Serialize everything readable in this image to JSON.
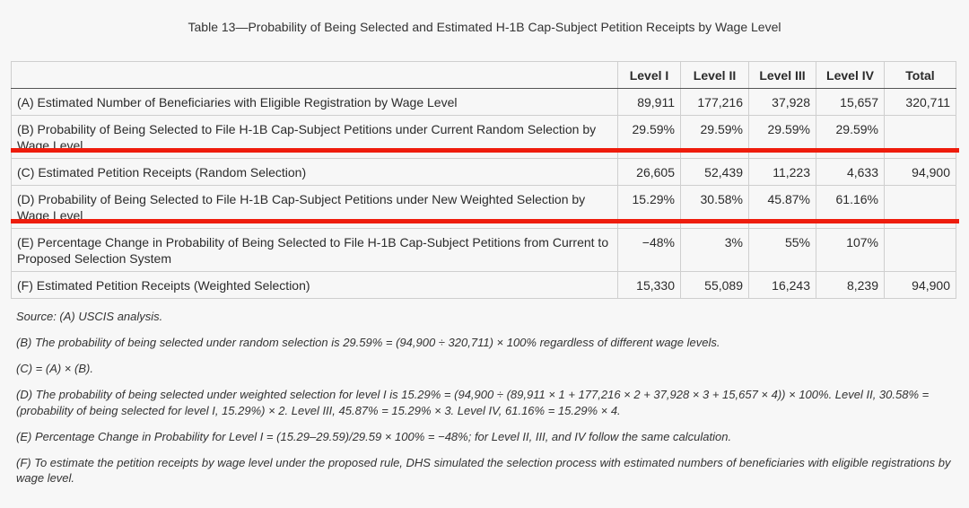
{
  "caption": "Table 13—Probability of Being Selected and Estimated H-1B Cap-Subject Petition Receipts by Wage Level",
  "columns": [
    "",
    "Level I",
    "Level II",
    "Level III",
    "Level IV",
    "Total"
  ],
  "rows": [
    {
      "label": "(A) Estimated Number of Beneficiaries with Eligible Registration by Wage Level",
      "values": [
        "89,911",
        "177,216",
        "37,928",
        "15,657",
        "320,711"
      ]
    },
    {
      "label": "(B) Probability of Being Selected to File H-1B Cap-Subject Petitions under Current Random Selection by Wage Level",
      "values": [
        "29.59%",
        "29.59%",
        "29.59%",
        "29.59%",
        ""
      ]
    },
    {
      "label": "(C) Estimated Petition Receipts (Random Selection)",
      "values": [
        "26,605",
        "52,439",
        "11,223",
        "4,633",
        "94,900"
      ]
    },
    {
      "label": "(D) Probability of Being Selected to File H-1B Cap-Subject Petitions under New Weighted Selection by Wage Level",
      "values": [
        "15.29%",
        "30.58%",
        "45.87%",
        "61.16%",
        ""
      ]
    },
    {
      "label": "(E) Percentage Change in Probability of Being Selected to File H-1B Cap-Subject Petitions from Current to Proposed Selection System",
      "values": [
        "−48%",
        "3%",
        "55%",
        "107%",
        ""
      ]
    },
    {
      "label": "(F) Estimated Petition Receipts (Weighted Selection)",
      "values": [
        "15,330",
        "55,089",
        "16,243",
        "8,239",
        "94,900"
      ]
    }
  ],
  "notes": [
    "Source: (A) USCIS analysis.",
    "(B) The probability of being selected under random selection is 29.59% = (94,900 ÷ 320,711) × 100% regardless of different wage levels.",
    "(C) = (A) × (B).",
    "(D) The probability of being selected under weighted selection for level I is 15.29% = (94,900 ÷ (89,911 × 1 + 177,216 × 2 + 37,928 × 3 + 15,657 × 4)) × 100%. Level II, 30.58% = (probability of being selected for level I, 15.29%) × 2. Level III, 45.87% = 15.29% × 3. Level IV, 61.16% = 15.29% × 4.",
    "(E) Percentage Change in Probability for Level I = (15.29–29.59)/29.59 × 100% = −48%; for Level II, III, and IV follow the same calculation.",
    "(F) To estimate the petition receipts by wage level under the proposed rule, DHS simulated the selection process with estimated numbers of beneficiaries with eligible registrations by wage level."
  ],
  "colors": {
    "highlight_line": "#ee1c0c"
  }
}
